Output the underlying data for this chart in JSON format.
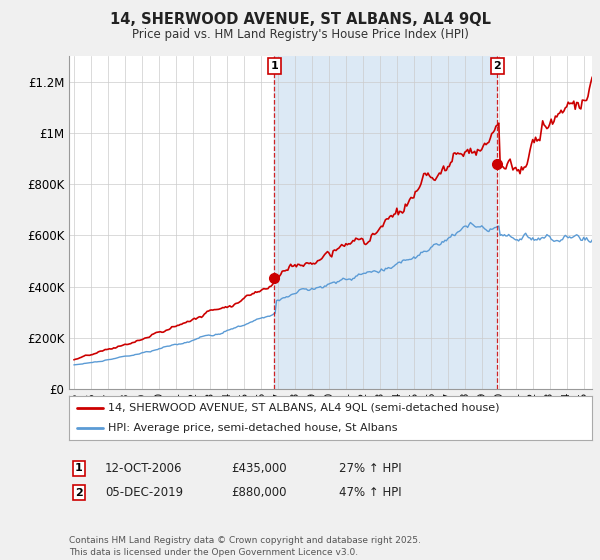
{
  "title": "14, SHERWOOD AVENUE, ST ALBANS, AL4 9QL",
  "subtitle": "Price paid vs. HM Land Registry's House Price Index (HPI)",
  "legend_line1": "14, SHERWOOD AVENUE, ST ALBANS, AL4 9QL (semi-detached house)",
  "legend_line2": "HPI: Average price, semi-detached house, St Albans",
  "annotation1_label": "1",
  "annotation1_date": "12-OCT-2006",
  "annotation1_price": "£435,000",
  "annotation1_hpi": "27% ↑ HPI",
  "annotation1_year": 2006.79,
  "annotation1_value": 435000,
  "annotation2_label": "2",
  "annotation2_date": "05-DEC-2019",
  "annotation2_price": "£880,000",
  "annotation2_hpi": "47% ↑ HPI",
  "annotation2_year": 2019.92,
  "annotation2_value": 880000,
  "footnote": "Contains HM Land Registry data © Crown copyright and database right 2025.\nThis data is licensed under the Open Government Licence v3.0.",
  "red_color": "#cc0000",
  "blue_color": "#5b9bd5",
  "shade_color": "#dce9f5",
  "background_color": "#f0f0f0",
  "plot_bg_color": "#ffffff",
  "ylim": [
    0,
    1300000
  ],
  "yticks": [
    0,
    200000,
    400000,
    600000,
    800000,
    1000000,
    1200000
  ],
  "ytick_labels": [
    "£0",
    "£200K",
    "£400K",
    "£600K",
    "£800K",
    "£1M",
    "£1.2M"
  ],
  "xstart": 1995,
  "xend": 2025
}
